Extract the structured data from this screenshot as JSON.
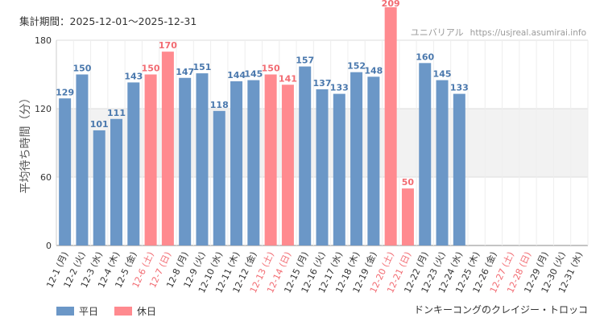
{
  "header": {
    "period_label": "集計期間：2025-12-01～2025-12-31",
    "source_name": "ユニバリアル",
    "source_site": "https://usjreal.asumirai.info"
  },
  "attraction_name": "ドンキーコングのクレイジー・トロッコ",
  "legend": {
    "weekday_label": "平日",
    "holiday_label": "休日"
  },
  "colors": {
    "weekday": "#6b97c7",
    "holiday": "#ff8a8f",
    "weekday_text": "#4a78ad",
    "holiday_text": "#f26b72",
    "band": "#f2f2f2"
  },
  "chart_data": {
    "type": "bar",
    "title": "",
    "xlabel": "",
    "ylabel": "平均待ち時間（分）",
    "ylim": [
      0,
      180
    ],
    "yticks": [
      0,
      60,
      120,
      180
    ],
    "shaded_band": [
      60,
      120
    ],
    "grid": true,
    "categories": [
      "12-1 (月)",
      "12-2 (火)",
      "12-3 (水)",
      "12-4 (木)",
      "12-5 (金)",
      "12-6 (土)",
      "12-7 (日)",
      "12-8 (月)",
      "12-9 (火)",
      "12-10 (水)",
      "12-11 (木)",
      "12-12 (金)",
      "12-13 (土)",
      "12-14 (日)",
      "12-15 (月)",
      "12-16 (火)",
      "12-17 (水)",
      "12-18 (木)",
      "12-19 (金)",
      "12-20 (土)",
      "12-21 (日)",
      "12-22 (月)",
      "12-23 (火)",
      "12-24 (水)",
      "12-25 (木)",
      "12-26 (金)",
      "12-27 (土)",
      "12-28 (日)",
      "12-29 (月)",
      "12-30 (火)",
      "12-31 (水)"
    ],
    "values": [
      129,
      150,
      101,
      111,
      143,
      150,
      170,
      147,
      151,
      118,
      144,
      145,
      150,
      141,
      157,
      137,
      133,
      152,
      148,
      209,
      50,
      160,
      145,
      133,
      null,
      null,
      null,
      null,
      null,
      null,
      null
    ],
    "day_type": [
      "weekday",
      "weekday",
      "weekday",
      "weekday",
      "weekday",
      "holiday",
      "holiday",
      "weekday",
      "weekday",
      "weekday",
      "weekday",
      "weekday",
      "holiday",
      "holiday",
      "weekday",
      "weekday",
      "weekday",
      "weekday",
      "weekday",
      "holiday",
      "holiday",
      "weekday",
      "weekday",
      "weekday",
      "weekday",
      "weekday",
      "holiday",
      "holiday",
      "weekday",
      "weekday",
      "weekday"
    ]
  }
}
